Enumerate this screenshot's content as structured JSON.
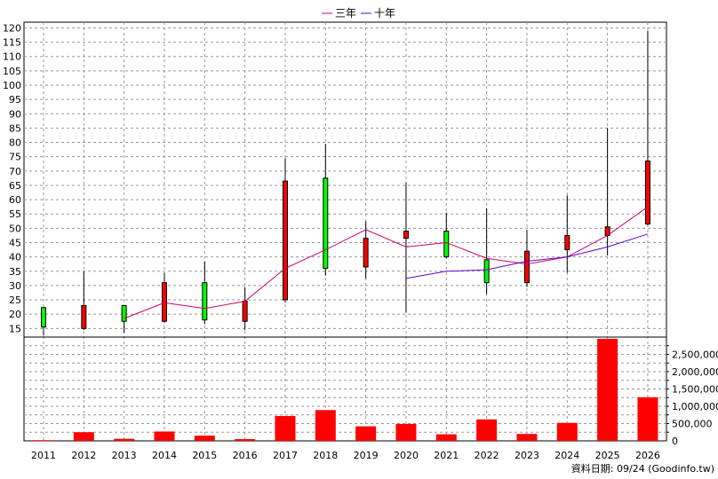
{
  "chart_data": {
    "type": "candlestick+line+bar",
    "years": [
      "2011",
      "2012",
      "2013",
      "2014",
      "2015",
      "2016",
      "2017",
      "2018",
      "2019",
      "2020",
      "2021",
      "2022",
      "2023",
      "2024",
      "2025",
      "2026"
    ],
    "price_axis": {
      "ylim": [
        12,
        122
      ],
      "ticks": [
        15,
        20,
        25,
        30,
        35,
        40,
        45,
        50,
        55,
        60,
        65,
        70,
        75,
        80,
        85,
        90,
        95,
        100,
        105,
        110,
        115,
        120
      ]
    },
    "candles": [
      {
        "year": "2011",
        "open": 15.5,
        "close": 22.3,
        "high": 22.5,
        "low": 12.5
      },
      {
        "year": "2012",
        "open": 23.0,
        "close": 15.0,
        "high": 35.0,
        "low": 14.5
      },
      {
        "year": "2013",
        "open": 17.5,
        "close": 23.0,
        "high": 23.0,
        "low": 13.5
      },
      {
        "year": "2014",
        "open": 31.0,
        "close": 17.5,
        "high": 34.5,
        "low": 17.0
      },
      {
        "year": "2015",
        "open": 18.0,
        "close": 31.0,
        "high": 38.5,
        "low": 16.5
      },
      {
        "year": "2016",
        "open": 24.5,
        "close": 17.5,
        "high": 29.5,
        "low": 14.5
      },
      {
        "year": "2017",
        "open": 66.5,
        "close": 25.0,
        "high": 74.5,
        "low": 24.0
      },
      {
        "year": "2018",
        "open": 36.0,
        "close": 67.5,
        "high": 79.5,
        "low": 33.5
      },
      {
        "year": "2019",
        "open": 46.5,
        "close": 36.5,
        "high": 52.5,
        "low": 32.5
      },
      {
        "year": "2020",
        "open": 49.0,
        "close": 46.5,
        "high": 66.0,
        "low": 20.5
      },
      {
        "year": "2021",
        "open": 40.0,
        "close": 49.0,
        "high": 55.5,
        "low": 39.5
      },
      {
        "year": "2022",
        "open": 31.0,
        "close": 39.0,
        "high": 57.0,
        "low": 27.0
      },
      {
        "year": "2023",
        "open": 42.0,
        "close": 31.0,
        "high": 49.5,
        "low": 29.5
      },
      {
        "year": "2024",
        "open": 47.5,
        "close": 42.5,
        "high": 61.5,
        "low": 34.5
      },
      {
        "year": "2025",
        "open": 50.5,
        "close": 47.5,
        "high": 85.0,
        "low": 40.5
      },
      {
        "year": "2026",
        "open": 73.5,
        "close": 51.5,
        "high": 119.0,
        "low": 51.0
      }
    ],
    "series": [
      {
        "name": "三年",
        "color": "#cc0066",
        "points": [
          [
            "2013",
            18.5
          ],
          [
            "2014",
            24.0
          ],
          [
            "2015",
            22.0
          ],
          [
            "2016",
            24.5
          ],
          [
            "2017",
            36.0
          ],
          [
            "2018",
            42.5
          ],
          [
            "2019",
            49.5
          ],
          [
            "2020",
            43.5
          ],
          [
            "2021",
            45.0
          ],
          [
            "2022",
            39.5
          ],
          [
            "2023",
            37.5
          ],
          [
            "2024",
            40.0
          ],
          [
            "2025",
            47.5
          ],
          [
            "2026",
            57.5
          ]
        ]
      },
      {
        "name": "十年",
        "color": "#6600cc",
        "points": [
          [
            "2020",
            32.5
          ],
          [
            "2021",
            35.0
          ],
          [
            "2022",
            35.5
          ],
          [
            "2023",
            38.5
          ],
          [
            "2024",
            40.0
          ],
          [
            "2025",
            43.5
          ],
          [
            "2026",
            48.0
          ]
        ]
      }
    ],
    "volume_axis": {
      "ylim": [
        0,
        3000000
      ],
      "ticks": [
        "0",
        "500,000",
        "1,000,000",
        "1,500,000",
        "2,000,000",
        "2,500,000"
      ]
    },
    "volumes": [
      20000,
      250000,
      60000,
      270000,
      150000,
      50000,
      720000,
      890000,
      420000,
      490000,
      190000,
      620000,
      200000,
      520000,
      2950000,
      1260000
    ],
    "colors": {
      "up": "#00ff00",
      "down": "#ff0000",
      "volume": "#ff0000",
      "grid": "#999999"
    },
    "legend_position": "top-center",
    "grid": true,
    "note": "資料日期: 09/24  (Goodinfo.tw)"
  }
}
